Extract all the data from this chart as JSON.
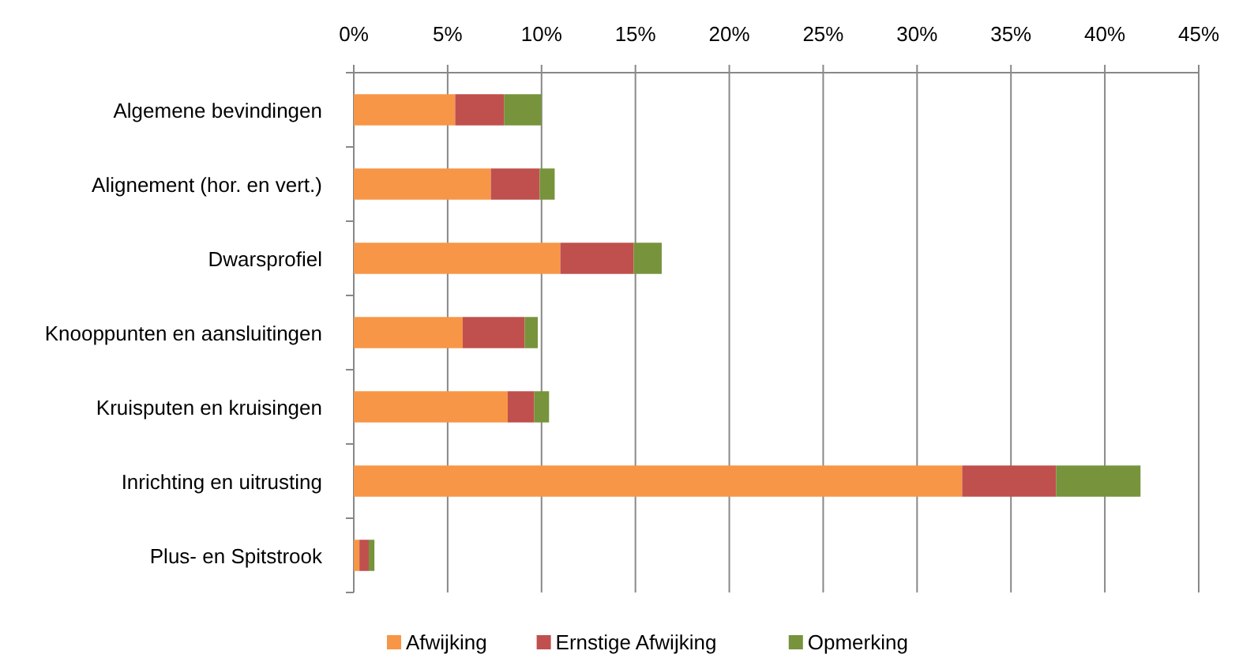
{
  "chart_data": {
    "type": "bar",
    "orientation": "horizontal",
    "stacked": true,
    "categories": [
      "Algemene bevindingen",
      "Alignement (hor. en vert.)",
      "Dwarsprofiel",
      "Knooppunten en aansluitingen",
      "Kruisputen en kruisingen",
      "Inrichting en uitrusting",
      "Plus- en Spitstrook"
    ],
    "series": [
      {
        "name": "Afwijking",
        "color": "#f79646",
        "values": [
          5.4,
          7.3,
          11.0,
          5.8,
          8.2,
          32.4,
          0.3
        ]
      },
      {
        "name": "Ernstige Afwijking",
        "color": "#c0504d",
        "values": [
          2.6,
          2.6,
          3.9,
          3.3,
          1.4,
          5.0,
          0.5
        ]
      },
      {
        "name": "Opmerking",
        "color": "#77933c",
        "values": [
          2.0,
          0.8,
          1.5,
          0.7,
          0.8,
          4.5,
          0.3
        ]
      }
    ],
    "xlim": [
      0,
      45
    ],
    "xticks": [
      {
        "value": 0,
        "label": "0%"
      },
      {
        "value": 5,
        "label": "5%"
      },
      {
        "value": 10,
        "label": "10%"
      },
      {
        "value": 15,
        "label": "15%"
      },
      {
        "value": 20,
        "label": "20%"
      },
      {
        "value": 25,
        "label": "25%"
      },
      {
        "value": 30,
        "label": "30%"
      },
      {
        "value": 35,
        "label": "35%"
      },
      {
        "value": 40,
        "label": "40%"
      },
      {
        "value": 45,
        "label": "45%"
      }
    ],
    "grid": "x",
    "legend": "bottom"
  }
}
